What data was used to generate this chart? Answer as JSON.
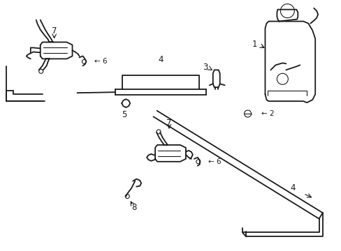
{
  "bg_color": "#ffffff",
  "line_color": "#1a1a1a",
  "lw": 1.3,
  "lw_thin": 0.8,
  "fig_w": 4.89,
  "fig_h": 3.6,
  "dpi": 100
}
